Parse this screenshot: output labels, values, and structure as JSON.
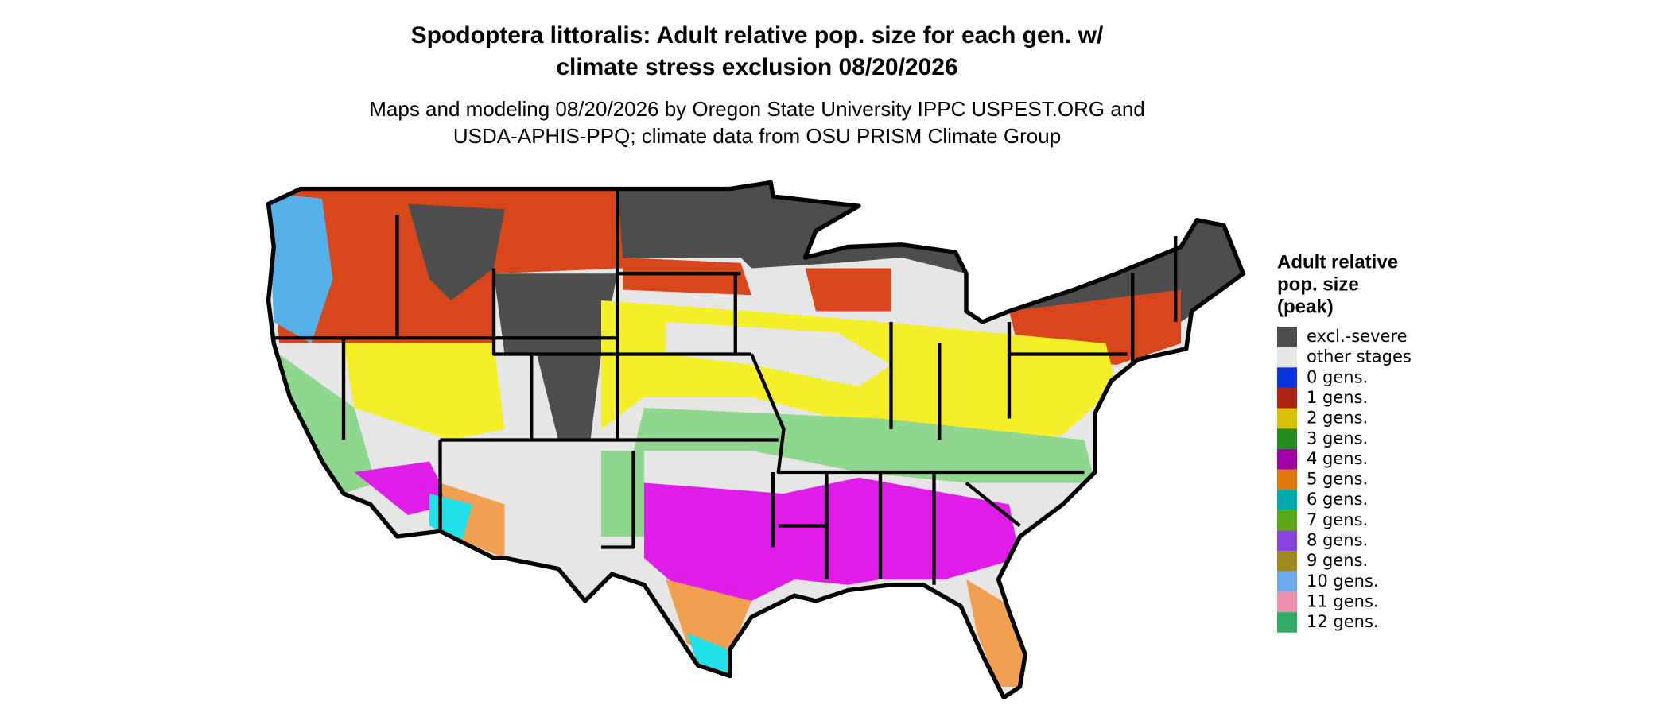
{
  "header": {
    "title_lines": [
      "Spodoptera littoralis: Adult relative pop. size for each gen. w/",
      "climate stress exclusion 08/20/2026"
    ],
    "subtitle_lines": [
      "Maps and modeling 08/20/2026 by Oregon State University IPPC USPEST.ORG and",
      "USDA-APHIS-PPQ; climate data from OSU PRISM Climate Group"
    ]
  },
  "legend": {
    "title_lines": [
      "Adult relative",
      "pop. size",
      "(peak)"
    ],
    "items": [
      {
        "label": "excl.-severe",
        "color": "#4d4d4d"
      },
      {
        "label": "other stages",
        "color": "#e6e6e6"
      },
      {
        "label": "0 gens.",
        "color": "#0a33dd"
      },
      {
        "label": "1 gens.",
        "color": "#aa2211"
      },
      {
        "label": "2 gens.",
        "color": "#d6c000"
      },
      {
        "label": "3 gens.",
        "color": "#238b22"
      },
      {
        "label": "4 gens.",
        "color": "#a000a8"
      },
      {
        "label": "5 gens.",
        "color": "#e07a10"
      },
      {
        "label": "6 gens.",
        "color": "#00aaaa"
      },
      {
        "label": "7 gens.",
        "color": "#5ca817"
      },
      {
        "label": "8 gens.",
        "color": "#8a44dd"
      },
      {
        "label": "9 gens.",
        "color": "#a08a20"
      },
      {
        "label": "10 gens.",
        "color": "#70aaee"
      },
      {
        "label": "11 gens.",
        "color": "#ee90b0"
      },
      {
        "label": "12 gens.",
        "color": "#33aa66"
      }
    ]
  }
}
